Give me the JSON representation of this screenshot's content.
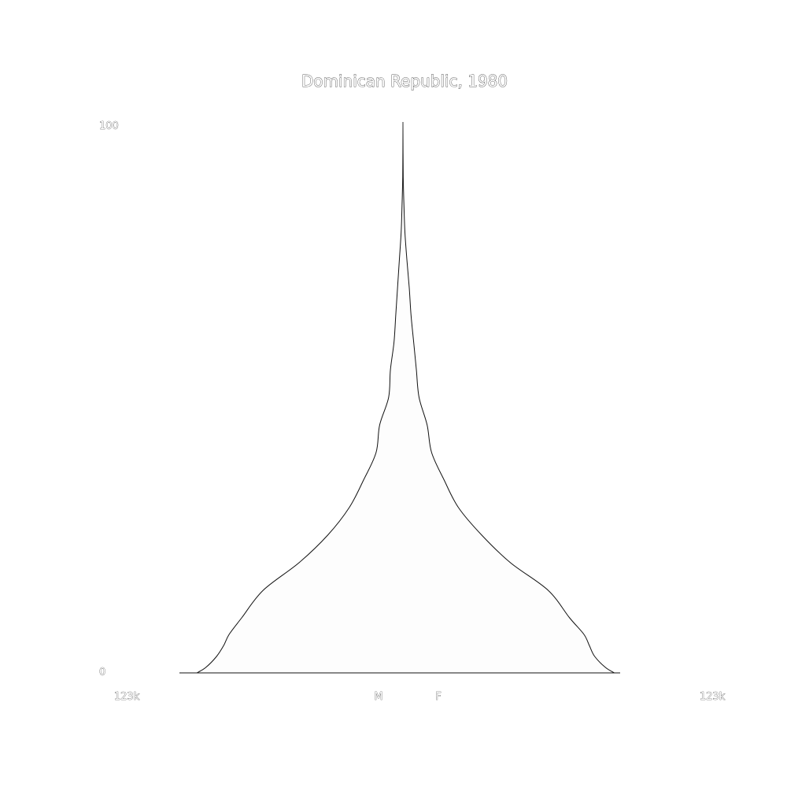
{
  "chart_data": {
    "type": "area",
    "subtype": "population-pyramid",
    "orientation": "vertical",
    "title": "Dominican Republic, 1980",
    "y_axis": {
      "label_min": "0",
      "label_max": "100",
      "range": [
        0,
        100
      ],
      "unit": "age"
    },
    "x_axis": {
      "label_left": "123k",
      "label_right": "123k",
      "range": [
        0,
        123000
      ]
    },
    "series": [
      {
        "name": "M",
        "side": "left",
        "points": [
          [
            0,
            115000
          ],
          [
            1,
            110000
          ],
          [
            3,
            104000
          ],
          [
            5,
            100000
          ],
          [
            7,
            97000
          ],
          [
            10,
            90000
          ],
          [
            15,
            78000
          ],
          [
            20,
            58000
          ],
          [
            25,
            42000
          ],
          [
            30,
            30000
          ],
          [
            35,
            22000
          ],
          [
            40,
            15000
          ],
          [
            45,
            13000
          ],
          [
            50,
            8000
          ],
          [
            55,
            7000
          ],
          [
            60,
            5000
          ],
          [
            65,
            4000
          ],
          [
            70,
            3000
          ],
          [
            75,
            2000
          ],
          [
            80,
            1000
          ],
          [
            85,
            500
          ],
          [
            90,
            150
          ],
          [
            100,
            0
          ]
        ]
      },
      {
        "name": "F",
        "side": "right",
        "points": [
          [
            0,
            118000
          ],
          [
            1,
            113000
          ],
          [
            3,
            107000
          ],
          [
            5,
            104000
          ],
          [
            7,
            101000
          ],
          [
            10,
            93000
          ],
          [
            15,
            81000
          ],
          [
            20,
            60000
          ],
          [
            25,
            44000
          ],
          [
            30,
            31000
          ],
          [
            35,
            23000
          ],
          [
            40,
            16000
          ],
          [
            45,
            13500
          ],
          [
            50,
            9000
          ],
          [
            55,
            7500
          ],
          [
            60,
            6000
          ],
          [
            65,
            4500
          ],
          [
            70,
            3500
          ],
          [
            75,
            2200
          ],
          [
            80,
            1100
          ],
          [
            85,
            550
          ],
          [
            90,
            180
          ],
          [
            100,
            0
          ]
        ]
      }
    ],
    "legend": [
      "M",
      "F"
    ]
  }
}
